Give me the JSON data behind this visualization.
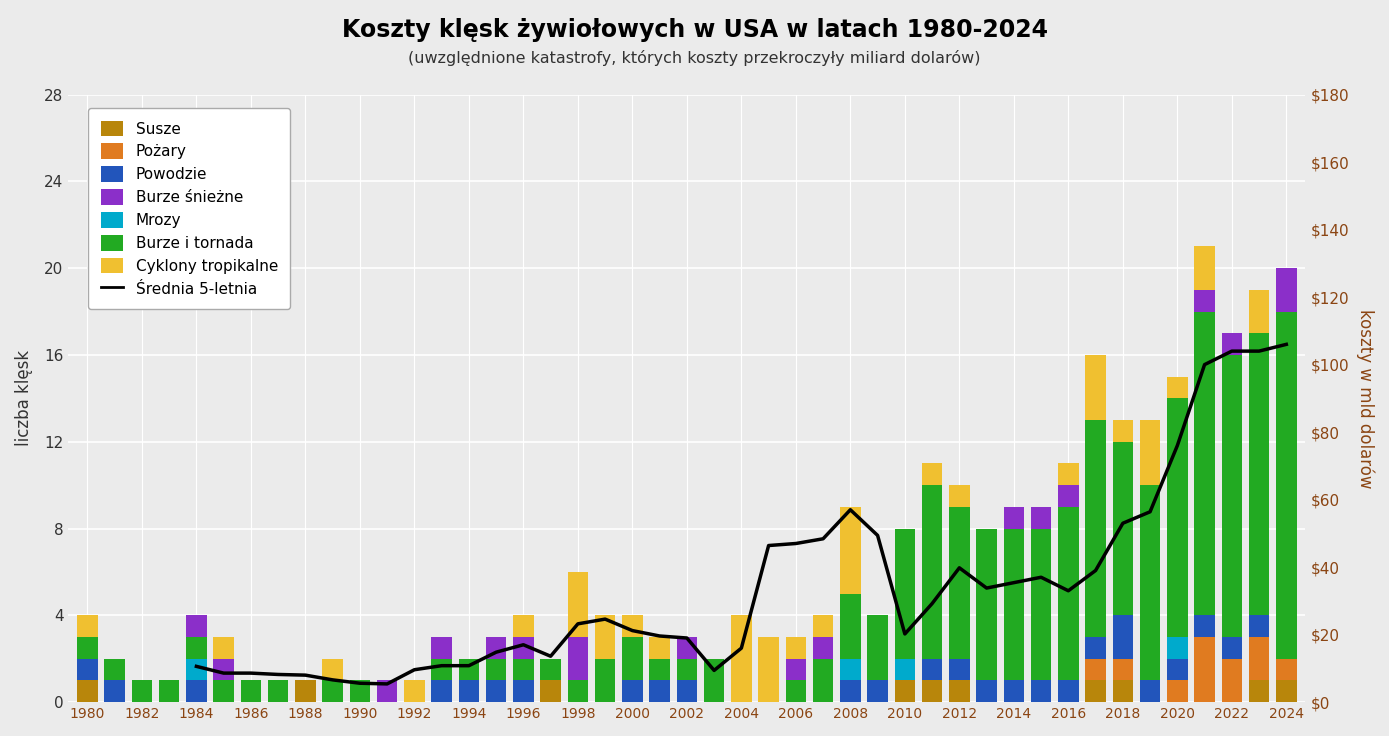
{
  "title": "Koszty klęsk żywiołowych w USA w latach 1980-2024",
  "subtitle": "(uwzględnione katastrofy, których koszty przekroczyły miliard dolarów)",
  "ylabel_left": "liczba klęsk",
  "ylabel_right": "koszty w mld dolarów",
  "years": [
    1980,
    1981,
    1982,
    1983,
    1984,
    1985,
    1986,
    1987,
    1988,
    1989,
    1990,
    1991,
    1992,
    1993,
    1994,
    1995,
    1996,
    1997,
    1998,
    1999,
    2000,
    2001,
    2002,
    2003,
    2004,
    2005,
    2006,
    2007,
    2008,
    2009,
    2010,
    2011,
    2012,
    2013,
    2014,
    2015,
    2016,
    2017,
    2018,
    2019,
    2020,
    2021,
    2022,
    2023,
    2024
  ],
  "susze": [
    1,
    0,
    0,
    0,
    0,
    0,
    0,
    0,
    1,
    0,
    0,
    0,
    0,
    0,
    0,
    0,
    0,
    1,
    0,
    0,
    0,
    0,
    0,
    0,
    0,
    0,
    0,
    0,
    0,
    0,
    1,
    1,
    1,
    0,
    0,
    0,
    0,
    1,
    1,
    0,
    0,
    0,
    0,
    1,
    1
  ],
  "pozary": [
    0,
    0,
    0,
    0,
    0,
    0,
    0,
    0,
    0,
    0,
    0,
    0,
    0,
    0,
    0,
    0,
    0,
    0,
    0,
    0,
    0,
    0,
    0,
    0,
    0,
    0,
    0,
    0,
    0,
    0,
    0,
    0,
    0,
    0,
    0,
    0,
    0,
    1,
    1,
    0,
    1,
    3,
    2,
    2,
    1
  ],
  "powodzie": [
    1,
    1,
    0,
    0,
    1,
    0,
    0,
    0,
    0,
    0,
    0,
    0,
    0,
    1,
    1,
    1,
    1,
    0,
    0,
    0,
    1,
    1,
    1,
    0,
    0,
    0,
    0,
    0,
    1,
    1,
    0,
    1,
    1,
    1,
    1,
    1,
    1,
    1,
    2,
    1,
    1,
    1,
    1,
    1,
    0
  ],
  "burze_sn": [
    0,
    0,
    0,
    0,
    1,
    1,
    0,
    0,
    0,
    0,
    0,
    1,
    0,
    1,
    0,
    1,
    1,
    0,
    2,
    0,
    0,
    0,
    1,
    0,
    0,
    0,
    1,
    1,
    0,
    0,
    0,
    0,
    0,
    0,
    1,
    1,
    1,
    0,
    0,
    0,
    0,
    1,
    1,
    0,
    2
  ],
  "mrozy": [
    0,
    0,
    0,
    0,
    1,
    0,
    0,
    0,
    0,
    0,
    0,
    0,
    0,
    0,
    0,
    0,
    0,
    0,
    0,
    0,
    0,
    0,
    0,
    0,
    0,
    0,
    0,
    0,
    1,
    0,
    1,
    0,
    0,
    0,
    0,
    0,
    0,
    0,
    0,
    0,
    1,
    0,
    0,
    0,
    0
  ],
  "burze_torn": [
    1,
    1,
    1,
    1,
    1,
    1,
    1,
    1,
    0,
    1,
    1,
    0,
    0,
    1,
    1,
    1,
    1,
    1,
    1,
    2,
    2,
    1,
    1,
    2,
    0,
    0,
    1,
    2,
    3,
    3,
    6,
    8,
    7,
    7,
    7,
    7,
    8,
    10,
    8,
    9,
    11,
    14,
    13,
    13,
    16
  ],
  "cyklony": [
    1,
    0,
    0,
    0,
    0,
    1,
    0,
    0,
    0,
    1,
    0,
    0,
    1,
    0,
    0,
    0,
    1,
    0,
    3,
    2,
    1,
    1,
    0,
    0,
    4,
    3,
    1,
    1,
    4,
    0,
    0,
    1,
    1,
    0,
    0,
    0,
    1,
    3,
    1,
    3,
    1,
    2,
    0,
    2,
    0
  ],
  "costs_raw": [
    20,
    5,
    6,
    7,
    15,
    10,
    5,
    4,
    6,
    8,
    5,
    4,
    25,
    12,
    8,
    25,
    15,
    8,
    60,
    15,
    8,
    7,
    5,
    12,
    48,
    160,
    10,
    12,
    55,
    10,
    14,
    55,
    65,
    25,
    18,
    22,
    35,
    95,
    95,
    35,
    120,
    155,
    115,
    95,
    45
  ],
  "bg_color": "#ebebeb",
  "bar_width": 0.75,
  "colors": {
    "susze": "#b8860b",
    "pozary": "#e07b20",
    "powodzie": "#2255bb",
    "burze_sn": "#8b2fc9",
    "mrozy": "#00aacc",
    "burze_torn": "#22aa22",
    "cyklony": "#f0c030"
  },
  "ylim_left": [
    0,
    28
  ],
  "ylim_right": [
    0,
    180
  ],
  "yticks_left": [
    0,
    4,
    8,
    12,
    16,
    20,
    24,
    28
  ],
  "yticks_right": [
    0,
    20,
    40,
    60,
    80,
    100,
    120,
    140,
    160,
    180
  ]
}
